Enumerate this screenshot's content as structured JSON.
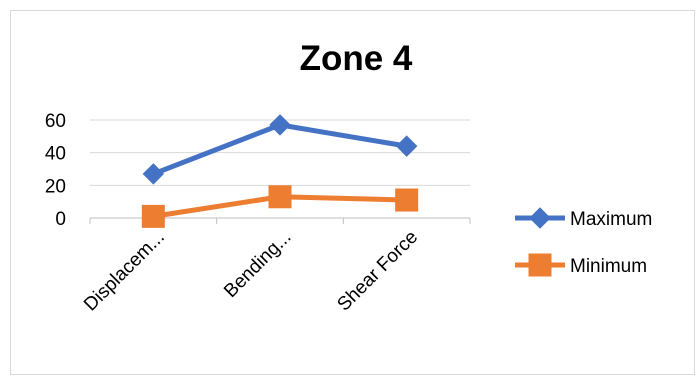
{
  "chart_data": {
    "type": "line",
    "title": "Zone 4",
    "categories": [
      "Displacem...",
      "Bending...",
      "Shear Force"
    ],
    "series": [
      {
        "name": "Maximum",
        "values": [
          27,
          57,
          44
        ],
        "color": "#4472C4",
        "marker": "diamond"
      },
      {
        "name": "Minimum",
        "values": [
          1,
          13,
          11
        ],
        "color": "#ED7D31",
        "marker": "square"
      }
    ],
    "ylim": [
      0,
      60
    ],
    "yticks": [
      0,
      20,
      40,
      60
    ],
    "grid": true,
    "legend_position": "right"
  },
  "colors": {
    "border": "#D9D9D9",
    "grid": "#D9D9D9",
    "axis": "#BFBFBF"
  }
}
